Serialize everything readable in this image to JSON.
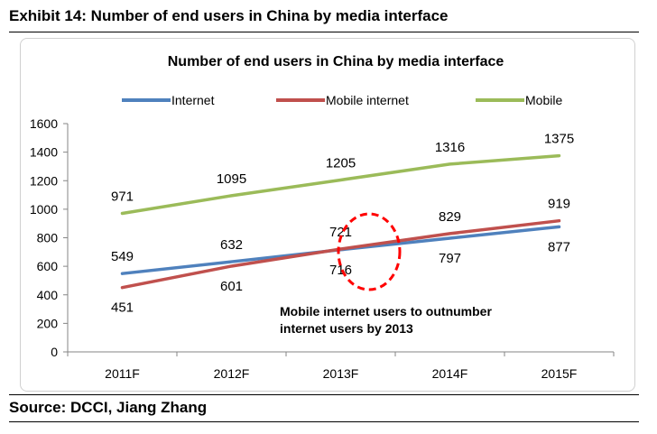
{
  "exhibit_title": "Exhibit 14: Number of end users in China by media interface",
  "source": "Source: DCCI, Jiang Zhang",
  "chart_data": {
    "type": "line",
    "title": "Number of end users in China by media interface",
    "categories": [
      "2011F",
      "2012F",
      "2013F",
      "2014F",
      "2015F"
    ],
    "ylim": [
      0,
      1600
    ],
    "yticks": [
      0,
      200,
      400,
      600,
      800,
      1000,
      1200,
      1400,
      1600
    ],
    "grid": false,
    "legend_position": "top",
    "series": [
      {
        "name": "Internet",
        "color": "#4f81bd",
        "values": [
          549,
          632,
          716,
          797,
          877
        ],
        "labels": [
          "549",
          "632",
          "716",
          "797",
          "877"
        ]
      },
      {
        "name": "Mobile internet",
        "color": "#c0504d",
        "values": [
          451,
          601,
          721,
          829,
          919
        ],
        "labels": [
          "451",
          "601",
          "721",
          "829",
          "919"
        ]
      },
      {
        "name": "Mobile",
        "color": "#9bbb59",
        "values": [
          971,
          1095,
          1205,
          1316,
          1375
        ],
        "labels": [
          "971",
          "1095",
          "1205",
          "1316",
          "1375"
        ]
      }
    ],
    "annotation": {
      "line1": "Mobile internet users to outnumber",
      "line2": "internet users by 2013",
      "highlight_color": "#ff0000"
    }
  }
}
